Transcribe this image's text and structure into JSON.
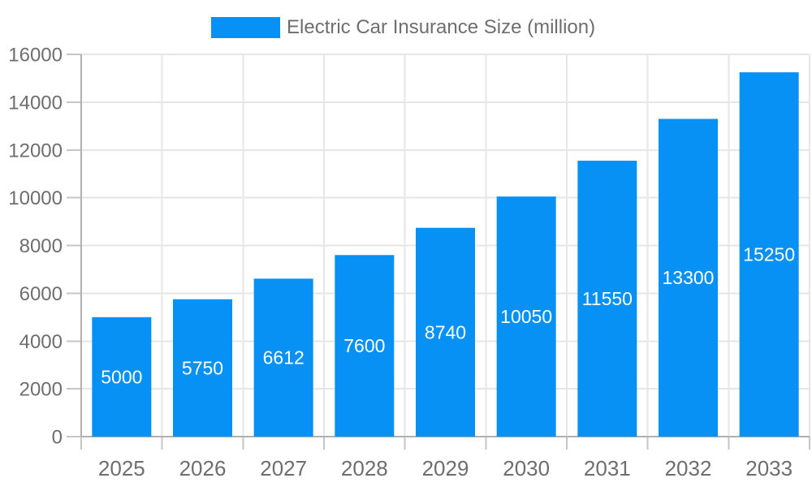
{
  "chart_data": {
    "type": "bar",
    "title": "",
    "legend": {
      "label": "Electric Car Insurance Size (million)",
      "position": "top-center"
    },
    "categories": [
      "2025",
      "2026",
      "2027",
      "2028",
      "2029",
      "2030",
      "2031",
      "2032",
      "2033"
    ],
    "series": [
      {
        "name": "Electric Car Insurance Size (million)",
        "values": [
          5000,
          5750,
          6612,
          7600,
          8740,
          10050,
          11550,
          13300,
          15250
        ]
      }
    ],
    "value_labels": [
      "5000",
      "5750",
      "6612",
      "7600",
      "8740",
      "10050",
      "11550",
      "13300",
      "15250"
    ],
    "xlabel": "",
    "ylabel": "",
    "ylim": [
      0,
      16000
    ],
    "y_ticks": [
      0,
      2000,
      4000,
      6000,
      8000,
      10000,
      12000,
      14000,
      16000
    ],
    "grid": "horizontal-and-vertical",
    "colors": {
      "bar": "#0791f5",
      "axis_text": "#6e6e6e",
      "legend_text": "#6e6e6e",
      "grid_line": "#e6e6e6",
      "axis_line": "#b0b0b0",
      "tick_line": "#c6c6c6",
      "value_label": "#ffffff",
      "background": "#ffffff"
    }
  }
}
